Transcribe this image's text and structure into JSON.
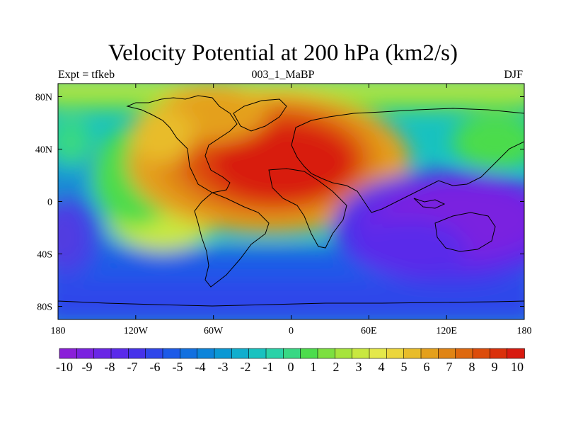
{
  "title": "Velocity Potential at 200 hPa (km2/s)",
  "subtitle_left": "Expt = tfkeb",
  "subtitle_center": "003_1_MaBP",
  "subtitle_right": "DJF",
  "map": {
    "projection": "cylindrical equidistant",
    "lon_range": [
      -180,
      180
    ],
    "lat_range": [
      -90,
      90
    ],
    "x_tick_labels": [
      "180",
      "120W",
      "60W",
      "0",
      "60E",
      "120E",
      "180"
    ],
    "y_tick_labels": [
      "80N",
      "40N",
      "0",
      "40S",
      "80S"
    ],
    "features": [
      "coastlines",
      "filled contours"
    ],
    "field_centers": [
      {
        "name": "maximum",
        "lon": -20,
        "lat": 25,
        "value": 10
      },
      {
        "name": "minimum",
        "lon": 120,
        "lat": -20,
        "value": -10
      },
      {
        "name": "minimum",
        "lon": -180,
        "lat": -25,
        "value": -9
      }
    ]
  },
  "colorbar": {
    "labels": [
      "-10",
      "-9",
      "-8",
      "-7",
      "-6",
      "-5",
      "-4",
      "-3",
      "-2",
      "-1",
      "0",
      "1",
      "2",
      "3",
      "4",
      "5",
      "6",
      "7",
      "8",
      "9",
      "10"
    ],
    "colors": [
      "#8a1fd9",
      "#7a22e0",
      "#6a26e6",
      "#5a2aea",
      "#4632ea",
      "#2f46ea",
      "#1c5ae8",
      "#1270e0",
      "#0c84da",
      "#0a98d4",
      "#10aece",
      "#18c2c0",
      "#2ad2a8",
      "#38d884",
      "#4cdc4c",
      "#7ce040",
      "#a6e43c",
      "#c8e840",
      "#e4e84a",
      "#ecd63c",
      "#e8bc2a",
      "#e4a01c",
      "#e08414",
      "#de680e",
      "#dc4c0a",
      "#da300a",
      "#d81a10"
    ]
  }
}
